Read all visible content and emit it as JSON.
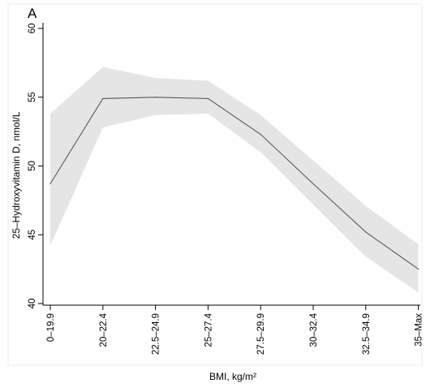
{
  "chart_data": {
    "type": "line",
    "panel_label": "A",
    "xlabel": "BMI, kg/m²",
    "ylabel": "25–Hydroxyvitamin D, nmol/L",
    "categories": [
      "0–19.9",
      "20–22.4",
      "22.5–24.9",
      "25–27.4",
      "27.5–29.9",
      "30–32.4",
      "32.5–34.9",
      "35–Max"
    ],
    "ylim": [
      40,
      60
    ],
    "yticks": [
      40,
      45,
      50,
      55,
      60
    ],
    "grid": false,
    "series": [
      {
        "values": [
          48.7,
          54.9,
          55.0,
          54.9,
          52.3,
          48.7,
          45.2,
          42.5
        ],
        "ci_lower": [
          44.2,
          52.8,
          53.7,
          53.8,
          51.0,
          47.2,
          43.4,
          40.8
        ],
        "ci_upper": [
          53.8,
          57.2,
          56.4,
          56.2,
          53.7,
          50.4,
          47.1,
          44.3
        ],
        "line_color": "#595959",
        "band_color": "#e5e5e5"
      }
    ]
  }
}
